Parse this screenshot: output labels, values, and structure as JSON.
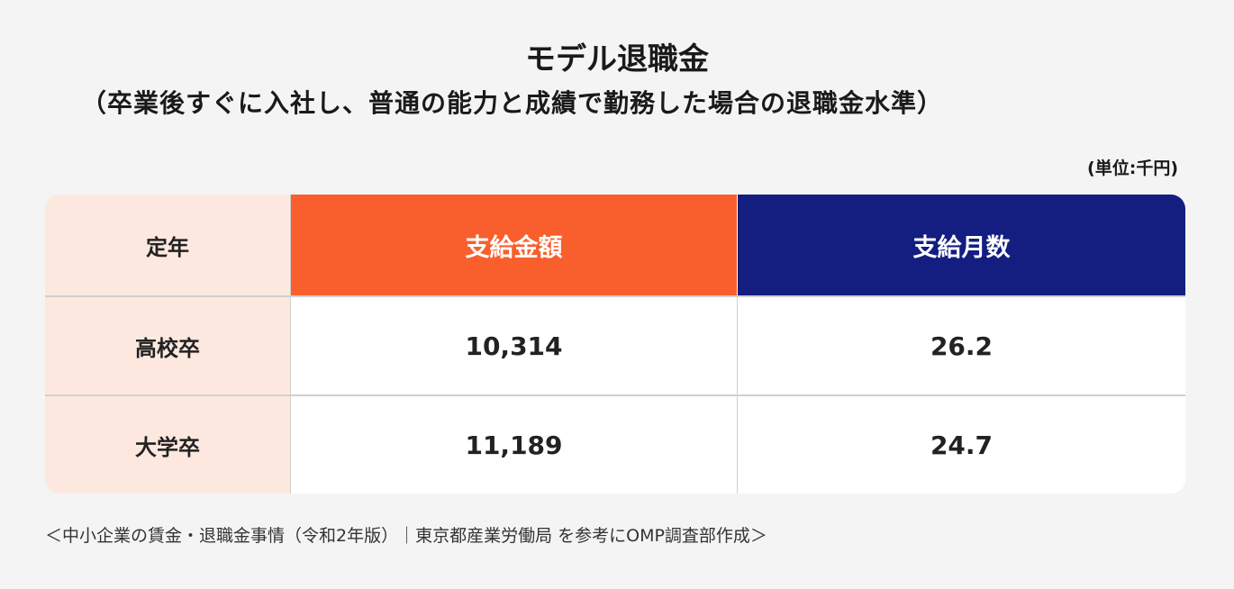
{
  "title": "モデル退職金",
  "subtitle": "（卒業後すぐに入社し、普通の能力と成績で勤務した場合の退職金水準）",
  "unit": "(単位:千円)",
  "table": {
    "headers": [
      "定年",
      "支給金額",
      "支給月数"
    ],
    "rows": [
      [
        "高校卒",
        "10,314",
        "26.2"
      ],
      [
        "大学卒",
        "11,189",
        "24.7"
      ]
    ]
  },
  "colors": {
    "accent_orange": "#f95f2c",
    "accent_navy": "#141e80",
    "row_header_bg": "#fde8e0"
  },
  "footer": "＜中小企業の賃金・退職金事情（令和2年版）｜東京都産業労働局 を参考にOMP調査部作成＞"
}
